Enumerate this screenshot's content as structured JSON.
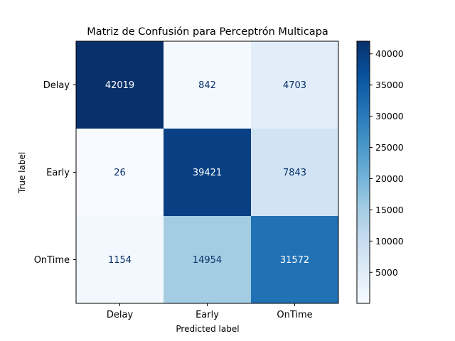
{
  "chart_data": {
    "type": "heatmap",
    "title": "Matriz de Confusión para Perceptrón Multicapa",
    "xlabel": "Predicted label",
    "ylabel": "True label",
    "x_categories": [
      "Delay",
      "Early",
      "OnTime"
    ],
    "y_categories": [
      "Delay",
      "Early",
      "OnTime"
    ],
    "values": [
      [
        42019,
        842,
        4703
      ],
      [
        26,
        39421,
        7843
      ],
      [
        1154,
        14954,
        31572
      ]
    ],
    "colormap": "Blues",
    "colorbar": {
      "range": [
        26,
        42019
      ],
      "ticks": [
        5000,
        10000,
        15000,
        20000,
        25000,
        30000,
        35000,
        40000
      ],
      "tick_labels": [
        "5000",
        "10000",
        "15000",
        "20000",
        "25000",
        "30000",
        "35000",
        "40000"
      ]
    },
    "grid": false
  }
}
